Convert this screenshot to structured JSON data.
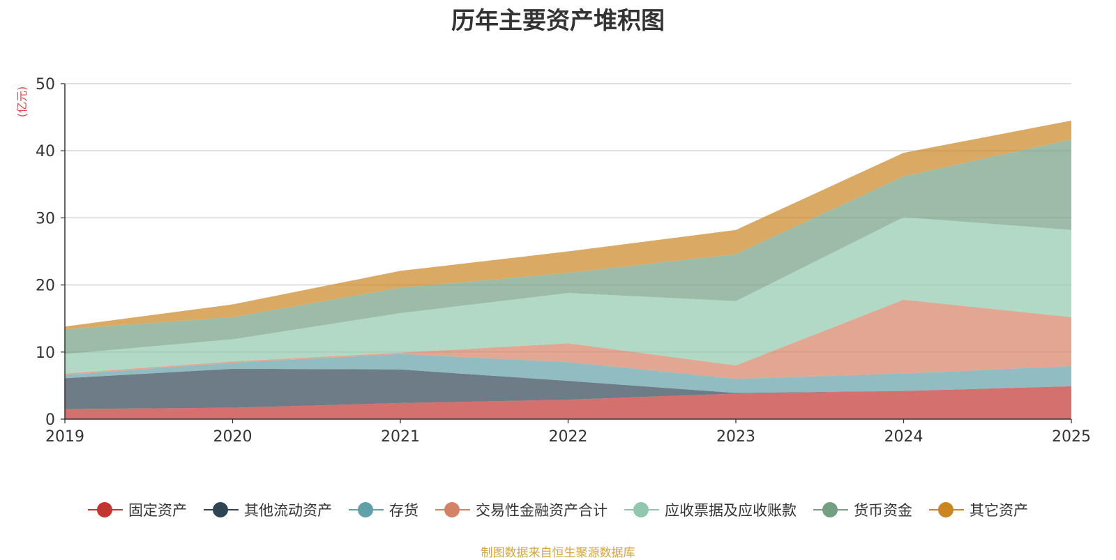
{
  "chart_data": {
    "type": "area",
    "stacked": true,
    "title": "历年主要资产堆积图",
    "ylabel": "(亿元)",
    "xlabel": "",
    "x": [
      "2019",
      "2020",
      "2021",
      "2022",
      "2023",
      "2024",
      "2025"
    ],
    "ylim": [
      0,
      50
    ],
    "yticks": [
      0,
      10,
      20,
      30,
      40,
      50
    ],
    "grid": true,
    "legend_position": "bottom",
    "series": [
      {
        "name": "固定资产",
        "color": "#c23531",
        "values": [
          1.5,
          1.7,
          2.4,
          2.9,
          3.8,
          4.2,
          4.9
        ]
      },
      {
        "name": "其他流动资产",
        "color": "#2f4554",
        "values": [
          4.6,
          5.8,
          5.0,
          2.8,
          0.1,
          0.0,
          0.0
        ]
      },
      {
        "name": "存货",
        "color": "#61a0a8",
        "values": [
          0.5,
          0.9,
          2.3,
          2.8,
          2.1,
          2.6,
          3.0
        ]
      },
      {
        "name": "交易性金融资产合计",
        "color": "#d48265",
        "values": [
          0.2,
          0.2,
          0.2,
          2.8,
          2.0,
          11.0,
          7.3
        ]
      },
      {
        "name": "应收票据及应收账款",
        "color": "#91c7ae",
        "values": [
          2.9,
          3.3,
          5.9,
          7.5,
          9.6,
          12.3,
          13.0
        ]
      },
      {
        "name": "货币资金",
        "color": "#749f83",
        "values": [
          3.7,
          3.3,
          3.8,
          3.0,
          7.0,
          6.1,
          13.5
        ]
      },
      {
        "name": "其它资产",
        "color": "#ca8622",
        "values": [
          0.4,
          1.9,
          2.5,
          3.2,
          3.6,
          3.5,
          2.8
        ]
      }
    ]
  },
  "source_note": "制图数据来自恒生聚源数据库"
}
